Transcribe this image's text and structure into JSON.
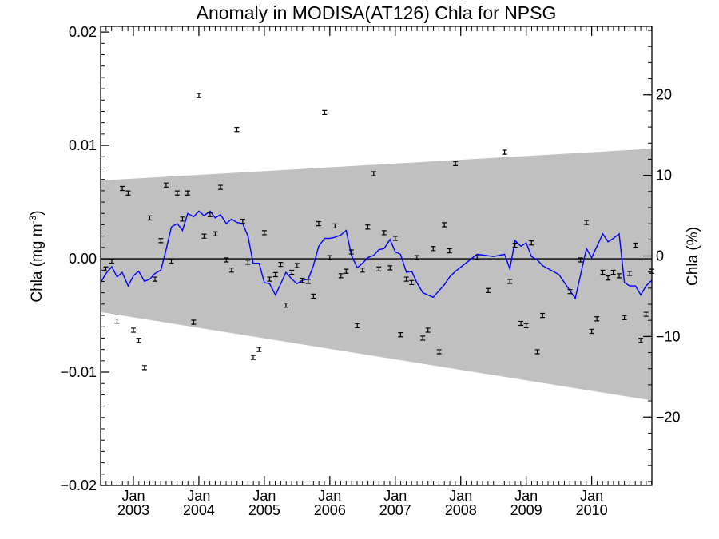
{
  "chart_data": {
    "type": "scatter",
    "title": "Anomaly in MODISA(AT126) Chla for NPSG",
    "ylabel": "Chla (mg m",
    "ylabel_sup": "-3",
    "ylabel_close": ")",
    "y2label": "Chla (%)",
    "xlim": [
      2002.5,
      2010.92
    ],
    "ylim": [
      -0.02,
      0.0205
    ],
    "y2lim": [
      -28.5,
      28.5
    ],
    "x_ticks": [
      {
        "value": 2003.0,
        "month": "Jan",
        "year": "2003"
      },
      {
        "value": 2004.0,
        "month": "Jan",
        "year": "2004"
      },
      {
        "value": 2005.0,
        "month": "Jan",
        "year": "2005"
      },
      {
        "value": 2006.0,
        "month": "Jan",
        "year": "2006"
      },
      {
        "value": 2007.0,
        "month": "Jan",
        "year": "2007"
      },
      {
        "value": 2008.0,
        "month": "Jan",
        "year": "2008"
      },
      {
        "value": 2009.0,
        "month": "Jan",
        "year": "2009"
      },
      {
        "value": 2010.0,
        "month": "Jan",
        "year": "2010"
      }
    ],
    "y_ticks": [
      {
        "value": 0.02,
        "label": "0.02"
      },
      {
        "value": 0.01,
        "label": "0.01"
      },
      {
        "value": 0.0,
        "label": "0.00"
      },
      {
        "value": -0.01,
        "label": "−0.01"
      },
      {
        "value": -0.02,
        "label": "−0.02"
      }
    ],
    "y2_ticks": [
      {
        "value": 20,
        "label": "20"
      },
      {
        "value": 10,
        "label": "10"
      },
      {
        "value": 0,
        "label": "0"
      },
      {
        "value": -10,
        "label": "−10"
      },
      {
        "value": -20,
        "label": "−20"
      }
    ],
    "band": {
      "color": "#c0c0c0",
      "x": [
        2002.5,
        2010.92
      ],
      "upper": [
        0.0069,
        0.0097
      ],
      "lower": [
        -0.0047,
        -0.0125
      ]
    },
    "zero_line": 0.0,
    "points": {
      "color": "#000000",
      "error": 0.00018,
      "x": [
        2002.58,
        2002.67,
        2002.75,
        2002.83,
        2002.92,
        2003.0,
        2003.08,
        2003.17,
        2003.25,
        2003.33,
        2003.42,
        2003.5,
        2003.58,
        2003.67,
        2003.75,
        2003.83,
        2003.92,
        2004.0,
        2004.08,
        2004.17,
        2004.25,
        2004.33,
        2004.42,
        2004.5,
        2004.58,
        2004.67,
        2004.75,
        2004.83,
        2004.92,
        2005.0,
        2005.08,
        2005.17,
        2005.25,
        2005.33,
        2005.42,
        2005.5,
        2005.58,
        2005.67,
        2005.75,
        2005.83,
        2005.92,
        2006.0,
        2006.08,
        2006.17,
        2006.25,
        2006.33,
        2006.42,
        2006.5,
        2006.58,
        2006.67,
        2006.75,
        2006.83,
        2006.92,
        2007.0,
        2007.08,
        2007.17,
        2007.25,
        2007.33,
        2007.42,
        2007.5,
        2007.58,
        2007.67,
        2007.75,
        2007.83,
        2007.92,
        2008.25,
        2008.42,
        2008.67,
        2008.75,
        2008.83,
        2008.92,
        2009.0,
        2009.08,
        2009.17,
        2009.25,
        2009.67,
        2009.83,
        2009.92,
        2010.0,
        2010.08,
        2010.17,
        2010.25,
        2010.33,
        2010.42,
        2010.5,
        2010.58,
        2010.67,
        2010.75,
        2010.83,
        2010.92
      ],
      "y": [
        -0.0009,
        -0.0002,
        -0.0055,
        0.0062,
        0.0058,
        -0.0063,
        -0.0072,
        -0.0096,
        0.0036,
        -0.0018,
        0.0016,
        0.0065,
        -0.0002,
        0.0058,
        0.0035,
        0.0058,
        -0.0056,
        0.0144,
        0.002,
        0.0039,
        0.0022,
        0.0063,
        -0.0001,
        -0.001,
        0.0114,
        0.0033,
        -0.0003,
        -0.0087,
        -0.008,
        0.0023,
        -0.0018,
        -0.0014,
        -0.0005,
        -0.0041,
        -0.0012,
        -0.0006,
        -0.0019,
        -0.002,
        -0.0033,
        0.0031,
        0.0129,
        0.0001,
        0.0029,
        -0.0015,
        -0.0011,
        0.0006,
        -0.0059,
        -0.001,
        0.0028,
        0.0075,
        -0.0009,
        0.0023,
        -0.0008,
        0.0018,
        -0.0067,
        -0.0018,
        -0.0021,
        0.0001,
        -0.007,
        -0.0063,
        0.0009,
        -0.0082,
        0.003,
        0.0007,
        0.0084,
        0.0001,
        -0.0028,
        0.0094,
        -0.002,
        0.0012,
        -0.0057,
        -0.0059,
        0.0014,
        -0.0082,
        -0.005,
        -0.0029,
        -0.0001,
        0.0032,
        -0.0064,
        -0.0053,
        -0.0012,
        -0.0017,
        -0.0012,
        -0.0015,
        -0.0052,
        -0.0013,
        0.0012,
        -0.0072,
        -0.0049,
        -0.0011
      ]
    },
    "line": {
      "color": "#0000ff",
      "x": [
        2002.5,
        2002.58,
        2002.67,
        2002.75,
        2002.83,
        2002.92,
        2003.0,
        2003.08,
        2003.17,
        2003.25,
        2003.33,
        2003.42,
        2003.5,
        2003.58,
        2003.67,
        2003.75,
        2003.83,
        2003.92,
        2004.0,
        2004.08,
        2004.17,
        2004.25,
        2004.33,
        2004.42,
        2004.5,
        2004.58,
        2004.67,
        2004.75,
        2004.83,
        2004.92,
        2005.0,
        2005.08,
        2005.17,
        2005.25,
        2005.33,
        2005.42,
        2005.5,
        2005.58,
        2005.67,
        2005.75,
        2005.83,
        2005.92,
        2006.0,
        2006.08,
        2006.17,
        2006.25,
        2006.33,
        2006.42,
        2006.5,
        2006.58,
        2006.67,
        2006.75,
        2006.83,
        2006.92,
        2007.0,
        2007.08,
        2007.17,
        2007.25,
        2007.33,
        2007.42,
        2007.5,
        2007.58,
        2007.67,
        2007.75,
        2007.83,
        2007.92,
        2008.25,
        2008.5,
        2008.67,
        2008.75,
        2008.83,
        2008.92,
        2009.0,
        2009.08,
        2009.17,
        2009.25,
        2009.5,
        2009.75,
        2009.92,
        2010.0,
        2010.08,
        2010.17,
        2010.25,
        2010.33,
        2010.42,
        2010.5,
        2010.58,
        2010.67,
        2010.75,
        2010.83,
        2010.92
      ],
      "y": [
        -0.0021,
        -0.0013,
        -0.0007,
        -0.0016,
        -0.0012,
        -0.0024,
        -0.0015,
        -0.0011,
        -0.002,
        -0.0018,
        -0.0013,
        -0.001,
        0.0008,
        0.0028,
        0.0031,
        0.0025,
        0.004,
        0.0037,
        0.0042,
        0.0038,
        0.0042,
        0.0036,
        0.0039,
        0.0031,
        0.0035,
        0.0032,
        0.0031,
        0.002,
        -0.0004,
        -0.0004,
        -0.0021,
        -0.0022,
        -0.0032,
        -0.0022,
        -0.0012,
        -0.0018,
        -0.0022,
        -0.0019,
        -0.0018,
        -0.0006,
        0.0011,
        0.0018,
        0.0018,
        0.0019,
        0.0021,
        0.0025,
        0.0003,
        -0.0008,
        -0.0004,
        0.0001,
        0.0003,
        0.0008,
        0.0009,
        0.0017,
        0.0006,
        0.0004,
        -0.0012,
        -0.0011,
        -0.0021,
        -0.003,
        -0.0032,
        -0.0034,
        -0.0028,
        -0.0023,
        -0.0016,
        -0.0011,
        0.0004,
        0.0002,
        0.0004,
        -0.0009,
        0.0016,
        0.0011,
        0.0014,
        0.0002,
        -0.0001,
        -0.0006,
        -0.0014,
        -0.0035,
        0.0009,
        0.0001,
        0.0011,
        0.0022,
        0.0015,
        0.0018,
        0.0022,
        -0.0021,
        -0.0024,
        -0.0024,
        -0.0032,
        -0.0024,
        -0.0019
      ]
    },
    "grid": false,
    "legend": "none"
  }
}
